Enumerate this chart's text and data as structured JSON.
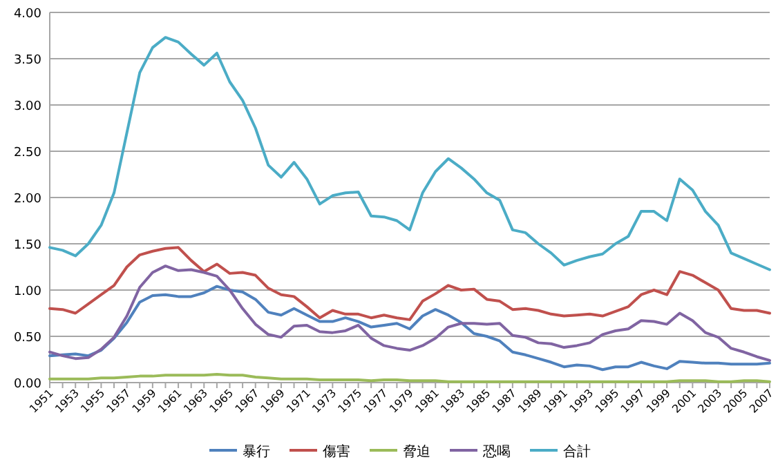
{
  "chart_data": {
    "type": "line",
    "categories": [
      "1951",
      null,
      "1953",
      null,
      "1955",
      null,
      "1957",
      null,
      "1959",
      null,
      "1961",
      null,
      "1963",
      null,
      "1965",
      null,
      "1967",
      null,
      "1969",
      null,
      "1971",
      null,
      "1973",
      null,
      "1975",
      null,
      "1977",
      null,
      "1979",
      null,
      "1981",
      null,
      "1983",
      null,
      "1985",
      null,
      "1987",
      null,
      "1989",
      null,
      "1991",
      null,
      "1993",
      null,
      "1995",
      null,
      "1997",
      null,
      "1999",
      null,
      "2001",
      null,
      "2003",
      null,
      "2005",
      null,
      "2007"
    ],
    "series": [
      {
        "name": "暴行",
        "color": "#4f81bd",
        "values": [
          0.29,
          0.3,
          0.31,
          0.29,
          0.35,
          0.48,
          0.65,
          0.87,
          0.94,
          0.95,
          0.93,
          0.93,
          0.97,
          1.04,
          1.0,
          0.98,
          0.9,
          0.76,
          0.73,
          0.8,
          0.73,
          0.66,
          0.66,
          0.7,
          0.66,
          0.6,
          0.62,
          0.64,
          0.58,
          0.72,
          0.79,
          0.73,
          0.65,
          0.53,
          0.5,
          0.45,
          0.33,
          0.3,
          0.26,
          0.22,
          0.17,
          0.19,
          0.18,
          0.14,
          0.17,
          0.17,
          0.22,
          0.18,
          0.15,
          0.23,
          0.22,
          0.21,
          0.21,
          0.2,
          0.2,
          0.2,
          0.21
        ]
      },
      {
        "name": "傷害",
        "color": "#c0504d",
        "values": [
          0.8,
          0.79,
          0.75,
          0.85,
          0.95,
          1.05,
          1.25,
          1.38,
          1.42,
          1.45,
          1.46,
          1.32,
          1.2,
          1.28,
          1.18,
          1.19,
          1.16,
          1.02,
          0.95,
          0.93,
          0.82,
          0.7,
          0.78,
          0.74,
          0.74,
          0.7,
          0.73,
          0.7,
          0.68,
          0.88,
          0.96,
          1.05,
          1.0,
          1.01,
          0.9,
          0.88,
          0.79,
          0.8,
          0.78,
          0.74,
          0.72,
          0.73,
          0.74,
          0.72,
          0.77,
          0.82,
          0.95,
          1.0,
          0.95,
          1.2,
          1.16,
          1.08,
          1.0,
          0.8,
          0.78,
          0.78,
          0.75
        ]
      },
      {
        "name": "脅迫",
        "color": "#9bbb59",
        "values": [
          0.04,
          0.04,
          0.04,
          0.04,
          0.05,
          0.05,
          0.06,
          0.07,
          0.07,
          0.08,
          0.08,
          0.08,
          0.08,
          0.09,
          0.08,
          0.08,
          0.06,
          0.05,
          0.04,
          0.04,
          0.04,
          0.03,
          0.03,
          0.03,
          0.03,
          0.02,
          0.03,
          0.03,
          0.02,
          0.02,
          0.02,
          0.01,
          0.01,
          0.01,
          0.01,
          0.01,
          0.01,
          0.01,
          0.01,
          0.01,
          0.01,
          0.01,
          0.01,
          0.01,
          0.01,
          0.01,
          0.01,
          0.01,
          0.01,
          0.02,
          0.02,
          0.02,
          0.01,
          0.01,
          0.02,
          0.02,
          0.01
        ]
      },
      {
        "name": "恐喝",
        "color": "#8064a2",
        "values": [
          0.33,
          0.29,
          0.26,
          0.27,
          0.36,
          0.49,
          0.72,
          1.03,
          1.19,
          1.26,
          1.21,
          1.22,
          1.19,
          1.15,
          1.0,
          0.8,
          0.63,
          0.52,
          0.49,
          0.61,
          0.62,
          0.55,
          0.54,
          0.56,
          0.62,
          0.48,
          0.4,
          0.37,
          0.35,
          0.4,
          0.48,
          0.6,
          0.64,
          0.64,
          0.63,
          0.64,
          0.51,
          0.49,
          0.43,
          0.42,
          0.38,
          0.4,
          0.43,
          0.52,
          0.56,
          0.58,
          0.67,
          0.66,
          0.63,
          0.75,
          0.67,
          0.54,
          0.49,
          0.37,
          0.33,
          0.28,
          0.24
        ]
      },
      {
        "name": "合計",
        "color": "#4bacc6",
        "values": [
          1.46,
          1.43,
          1.37,
          1.5,
          1.7,
          2.05,
          2.7,
          3.35,
          3.62,
          3.73,
          3.68,
          3.55,
          3.43,
          3.56,
          3.25,
          3.05,
          2.75,
          2.35,
          2.22,
          2.38,
          2.2,
          1.93,
          2.02,
          2.05,
          2.06,
          1.8,
          1.79,
          1.75,
          1.65,
          2.05,
          2.28,
          2.42,
          2.32,
          2.2,
          2.05,
          1.97,
          1.65,
          1.62,
          1.5,
          1.4,
          1.27,
          1.32,
          1.36,
          1.39,
          1.5,
          1.58,
          1.85,
          1.85,
          1.75,
          2.2,
          2.08,
          1.85,
          1.7,
          1.4,
          1.34,
          1.28,
          1.22
        ]
      }
    ],
    "ylim": [
      0,
      4
    ],
    "yticks": [
      {
        "value": 0,
        "label": "0.00"
      },
      {
        "value": 0.5,
        "label": "0.50"
      },
      {
        "value": 1,
        "label": "1.00"
      },
      {
        "value": 1.5,
        "label": "1.50"
      },
      {
        "value": 2,
        "label": "2.00"
      },
      {
        "value": 2.5,
        "label": "2.50"
      },
      {
        "value": 3,
        "label": "3.00"
      },
      {
        "value": 3.5,
        "label": "3.50"
      },
      {
        "value": 4,
        "label": "4.00"
      }
    ],
    "grid": "y",
    "legend": "bottom",
    "marker": "none",
    "line_style": "solid"
  }
}
